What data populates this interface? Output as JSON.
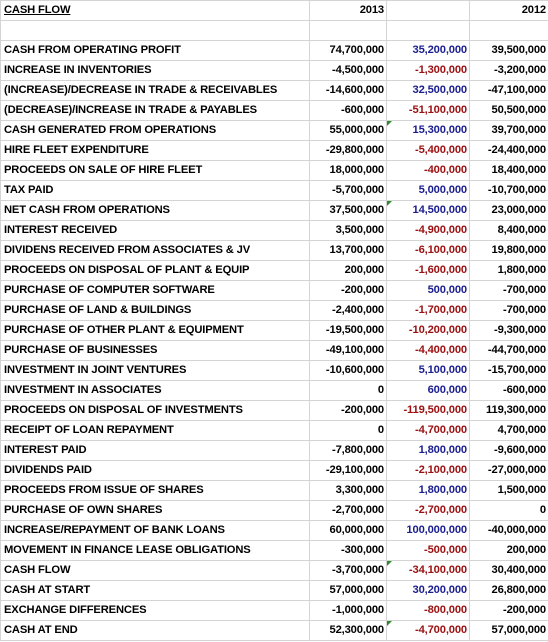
{
  "header": {
    "title": "CASH FLOW",
    "col_2013": "2013",
    "col_2012": "2012"
  },
  "rows": [
    {
      "label": "CASH FROM OPERATING PROFIT",
      "y2013": "74,700,000",
      "variance": "35,200,000",
      "y2012": "39,500,000",
      "sign": "pos",
      "flag": false
    },
    {
      "label": "INCREASE IN INVENTORIES",
      "y2013": "-4,500,000",
      "variance": "-1,300,000",
      "y2012": "-3,200,000",
      "sign": "neg",
      "flag": false
    },
    {
      "label": "(INCREASE)/DECREASE IN TRADE & RECEIVABLES",
      "y2013": "-14,600,000",
      "variance": "32,500,000",
      "y2012": "-47,100,000",
      "sign": "pos",
      "flag": false
    },
    {
      "label": "(DECREASE)/INCREASE IN TRADE & PAYABLES",
      "y2013": "-600,000",
      "variance": "-51,100,000",
      "y2012": "50,500,000",
      "sign": "neg",
      "flag": false
    },
    {
      "label": "CASH GENERATED FROM OPERATIONS",
      "y2013": "55,000,000",
      "variance": "15,300,000",
      "y2012": "39,700,000",
      "sign": "pos",
      "flag": true
    },
    {
      "label": "HIRE FLEET EXPENDITURE",
      "y2013": "-29,800,000",
      "variance": "-5,400,000",
      "y2012": "-24,400,000",
      "sign": "neg",
      "flag": false
    },
    {
      "label": "PROCEEDS ON SALE OF HIRE FLEET",
      "y2013": "18,000,000",
      "variance": "-400,000",
      "y2012": "18,400,000",
      "sign": "neg",
      "flag": false
    },
    {
      "label": "TAX PAID",
      "y2013": "-5,700,000",
      "variance": "5,000,000",
      "y2012": "-10,700,000",
      "sign": "pos",
      "flag": false
    },
    {
      "label": "NET CASH FROM OPERATIONS",
      "y2013": "37,500,000",
      "variance": "14,500,000",
      "y2012": "23,000,000",
      "sign": "pos",
      "flag": true
    },
    {
      "label": "INTEREST RECEIVED",
      "y2013": "3,500,000",
      "variance": "-4,900,000",
      "y2012": "8,400,000",
      "sign": "neg",
      "flag": false
    },
    {
      "label": "DIVIDENS RECEIVED FROM ASSOCIATES & JV",
      "y2013": "13,700,000",
      "variance": "-6,100,000",
      "y2012": "19,800,000",
      "sign": "neg",
      "flag": false
    },
    {
      "label": "PROCEEDS ON DISPOSAL OF PLANT & EQUIP",
      "y2013": "200,000",
      "variance": "-1,600,000",
      "y2012": "1,800,000",
      "sign": "neg",
      "flag": false
    },
    {
      "label": "PURCHASE OF COMPUTER SOFTWARE",
      "y2013": "-200,000",
      "variance": "500,000",
      "y2012": "-700,000",
      "sign": "pos",
      "flag": false
    },
    {
      "label": "PURCHASE OF LAND & BUILDINGS",
      "y2013": "-2,400,000",
      "variance": "-1,700,000",
      "y2012": "-700,000",
      "sign": "neg",
      "flag": false
    },
    {
      "label": "PURCHASE OF OTHER PLANT & EQUIPMENT",
      "y2013": "-19,500,000",
      "variance": "-10,200,000",
      "y2012": "-9,300,000",
      "sign": "neg",
      "flag": false
    },
    {
      "label": "PURCHASE OF BUSINESSES",
      "y2013": "-49,100,000",
      "variance": "-4,400,000",
      "y2012": "-44,700,000",
      "sign": "neg",
      "flag": false
    },
    {
      "label": "INVESTMENT IN JOINT VENTURES",
      "y2013": "-10,600,000",
      "variance": "5,100,000",
      "y2012": "-15,700,000",
      "sign": "pos",
      "flag": false
    },
    {
      "label": "INVESTMENT IN ASSOCIATES",
      "y2013": "0",
      "variance": "600,000",
      "y2012": "-600,000",
      "sign": "pos",
      "flag": false
    },
    {
      "label": "PROCEEDS ON DISPOSAL OF INVESTMENTS",
      "y2013": "-200,000",
      "variance": "-119,500,000",
      "y2012": "119,300,000",
      "sign": "neg",
      "flag": false
    },
    {
      "label": "RECEIPT OF LOAN REPAYMENT",
      "y2013": "0",
      "variance": "-4,700,000",
      "y2012": "4,700,000",
      "sign": "neg",
      "flag": false
    },
    {
      "label": "INTEREST PAID",
      "y2013": "-7,800,000",
      "variance": "1,800,000",
      "y2012": "-9,600,000",
      "sign": "pos",
      "flag": false
    },
    {
      "label": "DIVIDENDS PAID",
      "y2013": "-29,100,000",
      "variance": "-2,100,000",
      "y2012": "-27,000,000",
      "sign": "neg",
      "flag": false
    },
    {
      "label": "PROCEEDS FROM ISSUE OF SHARES",
      "y2013": "3,300,000",
      "variance": "1,800,000",
      "y2012": "1,500,000",
      "sign": "pos",
      "flag": false
    },
    {
      "label": "PURCHASE OF OWN SHARES",
      "y2013": "-2,700,000",
      "variance": "-2,700,000",
      "y2012": "0",
      "sign": "neg",
      "flag": false
    },
    {
      "label": "INCREASE/REPAYMENT OF BANK LOANS",
      "y2013": "60,000,000",
      "variance": "100,000,000",
      "y2012": "-40,000,000",
      "sign": "pos",
      "flag": false
    },
    {
      "label": "MOVEMENT IN FINANCE LEASE OBLIGATIONS",
      "y2013": "-300,000",
      "variance": "-500,000",
      "y2012": "200,000",
      "sign": "neg",
      "flag": false
    },
    {
      "label": "CASH FLOW",
      "y2013": "-3,700,000",
      "variance": "-34,100,000",
      "y2012": "30,400,000",
      "sign": "neg",
      "flag": true
    },
    {
      "label": "CASH AT START",
      "y2013": "57,000,000",
      "variance": "30,200,000",
      "y2012": "26,800,000",
      "sign": "pos",
      "flag": false
    },
    {
      "label": "EXCHANGE DIFFERENCES",
      "y2013": "-1,000,000",
      "variance": "-800,000",
      "y2012": "-200,000",
      "sign": "neg",
      "flag": false
    },
    {
      "label": "CASH AT END",
      "y2013": "52,300,000",
      "variance": "-4,700,000",
      "y2012": "57,000,000",
      "sign": "neg",
      "flag": true
    }
  ],
  "colors": {
    "positive_variance": "#1a1e8f",
    "negative_variance": "#9b1010",
    "flag_marker": "#2e8b2e",
    "gridline": "#d4d4d4"
  }
}
